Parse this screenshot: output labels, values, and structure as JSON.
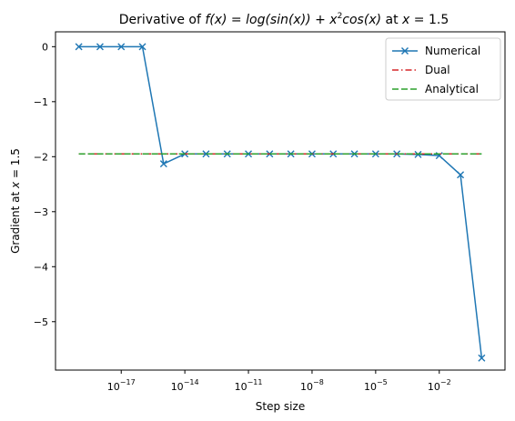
{
  "chart_data": {
    "type": "line",
    "title": {
      "prefix": "Derivative of ",
      "func_lhs": "f(x)",
      "func_rhs_a": "log(sin(x)) + x",
      "exp": "2",
      "func_rhs_b": "cos(x)",
      "mid": " at ",
      "at_var": "x",
      "at_eq": " = 1.5"
    },
    "xlabel": "Step size",
    "ylabel": {
      "prefix": "Gradient at ",
      "var": "x",
      "eq": " = 1.5"
    },
    "x_scale": "log",
    "x_ticks": [
      {
        "exp": -17,
        "base": "10",
        "sup": "−17"
      },
      {
        "exp": -14,
        "base": "10",
        "sup": "−14"
      },
      {
        "exp": -11,
        "base": "10",
        "sup": "−11"
      },
      {
        "exp": -8,
        "base": "10",
        "sup": "−8"
      },
      {
        "exp": -5,
        "base": "10",
        "sup": "−5"
      },
      {
        "exp": -2,
        "base": "10",
        "sup": "−2"
      }
    ],
    "y_ticks": [
      {
        "value": 0,
        "label": "0"
      },
      {
        "value": -1,
        "label": "−1"
      },
      {
        "value": -2,
        "label": "−2"
      },
      {
        "value": -3,
        "label": "−3"
      },
      {
        "value": -4,
        "label": "−4"
      },
      {
        "value": -5,
        "label": "−5"
      }
    ],
    "ylim": [
      -5.88,
      0.27
    ],
    "xlim_exp": [
      -20.1,
      1.1
    ],
    "grid": false,
    "legend_position": "top-right",
    "series": [
      {
        "name": "Numerical",
        "color": "#1f77b4",
        "style": "solid",
        "marker": "x",
        "x_exp": [
          -19,
          -18,
          -17,
          -16,
          -15,
          -14,
          -13,
          -12,
          -11,
          -10,
          -9,
          -8,
          -7,
          -6,
          -5,
          -4,
          -3,
          -2,
          -1,
          0
        ],
        "y": [
          0,
          0,
          0,
          0,
          -2.13,
          -1.95,
          -1.95,
          -1.95,
          -1.95,
          -1.95,
          -1.95,
          -1.95,
          -1.95,
          -1.95,
          -1.95,
          -1.95,
          -1.96,
          -1.98,
          -2.33,
          -5.66
        ]
      },
      {
        "name": "Dual",
        "color": "#d62728",
        "style": "dashdot",
        "marker": "",
        "x_exp": [
          -19,
          0
        ],
        "y": [
          -1.95,
          -1.95
        ]
      },
      {
        "name": "Analytical",
        "color": "#2ca02c",
        "style": "dashed",
        "marker": "",
        "x_exp": [
          -19,
          0
        ],
        "y": [
          -1.95,
          -1.95
        ]
      }
    ]
  }
}
